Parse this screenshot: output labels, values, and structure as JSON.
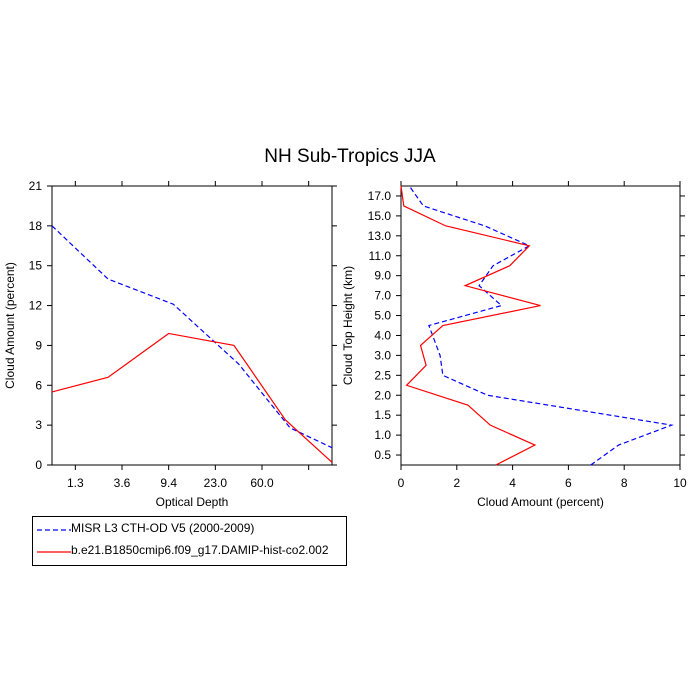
{
  "title": "NH Sub-Tropics JJA",
  "colors": {
    "obs": "#0000ff",
    "model": "#ff0000",
    "axis": "#000000"
  },
  "legend": {
    "items": [
      {
        "label": "MISR L3 CTH-OD V5 (2000-2009)",
        "color": "#0000ff",
        "style": "dashed"
      },
      {
        "label": "b.e21.B1850cmip6.f09_g17.DAMIP-hist-co2.002",
        "color": "#ff0000",
        "style": "solid"
      }
    ]
  },
  "chart_data": [
    {
      "type": "line",
      "title": "",
      "xlabel": "Optical Depth",
      "ylabel": "Cloud Amount (percent)",
      "x_index": [
        0,
        1,
        2,
        3,
        4,
        5,
        6
      ],
      "xlim": [
        0,
        6
      ],
      "xticks": [
        0.5,
        1.5,
        2.5,
        3.5,
        4.5,
        5.5
      ],
      "xtick_labels": [
        "1.3",
        "3.6",
        "9.4",
        "23.0",
        "60.0"
      ],
      "xtick_label_positions": [
        0.5,
        1.5,
        2.5,
        3.5,
        4.5
      ],
      "ylim": [
        0,
        21
      ],
      "yticks": [
        0,
        3,
        6,
        9,
        12,
        15,
        18,
        21
      ],
      "ytick_labels": [
        "0",
        "3",
        "6",
        "9",
        "12",
        "15",
        "18",
        "21"
      ],
      "series": [
        {
          "name": "MISR L3 CTH-OD V5 (2000-2009)",
          "values": [
            18.0,
            14.0,
            12.1,
            7.6,
            2.8,
            1.3
          ],
          "x": [
            0,
            1.2,
            2.6,
            4.0,
            5.1,
            6.0
          ]
        },
        {
          "name": "b.e21.B1850cmip6.f09_g17.DAMIP-hist-co2.002",
          "values": [
            5.5,
            6.6,
            9.9,
            9.0,
            3.4,
            0.2
          ],
          "x": [
            0,
            1.2,
            2.5,
            3.9,
            5.0,
            6.0
          ]
        }
      ]
    },
    {
      "type": "line",
      "title": "",
      "xlabel": "Cloud Amount (percent)",
      "ylabel": "Cloud Top Height (km)",
      "xlim": [
        0,
        10
      ],
      "xticks": [
        0,
        2,
        4,
        6,
        8,
        10
      ],
      "xtick_labels": [
        "0",
        "2",
        "4",
        "6",
        "8",
        "10"
      ],
      "ylim": [
        0,
        14
      ],
      "yticks": [
        0.5,
        1.5,
        2.5,
        3.5,
        4.5,
        5.5,
        6.5,
        7.5,
        8.5,
        9.5,
        10.5,
        11.5,
        12.5,
        13.5
      ],
      "ytick_labels": [
        "0.5",
        "1.0",
        "1.5",
        "2.0",
        "2.5",
        "3.0",
        "4.0",
        "5.0",
        "7.0",
        "9.0",
        "11.0",
        "13.0",
        "15.0",
        "17.0"
      ],
      "series": [
        {
          "name": "MISR L3 CTH-OD V5 (2000-2009)",
          "x": [
            6.8,
            7.8,
            9.7,
            3.1,
            1.5,
            1.4,
            1.0,
            3.6,
            2.8,
            3.3,
            4.6,
            3.0,
            0.8,
            0.3
          ],
          "y": [
            0.0,
            1.0,
            2.0,
            3.5,
            4.5,
            5.5,
            7.0,
            8.0,
            9.0,
            10.0,
            11.0,
            12.0,
            13.0,
            14.0
          ]
        },
        {
          "name": "b.e21.B1850cmip6.f09_g17.DAMIP-hist-co2.002",
          "x": [
            3.4,
            4.8,
            3.2,
            2.4,
            0.2,
            0.9,
            0.7,
            1.5,
            5.0,
            2.3,
            3.9,
            4.6,
            1.6,
            0.1,
            0.0
          ],
          "y": [
            0.0,
            1.0,
            2.0,
            3.0,
            4.0,
            5.0,
            6.0,
            7.0,
            8.0,
            9.0,
            10.0,
            11.0,
            12.0,
            13.0,
            14.0
          ]
        }
      ]
    }
  ]
}
